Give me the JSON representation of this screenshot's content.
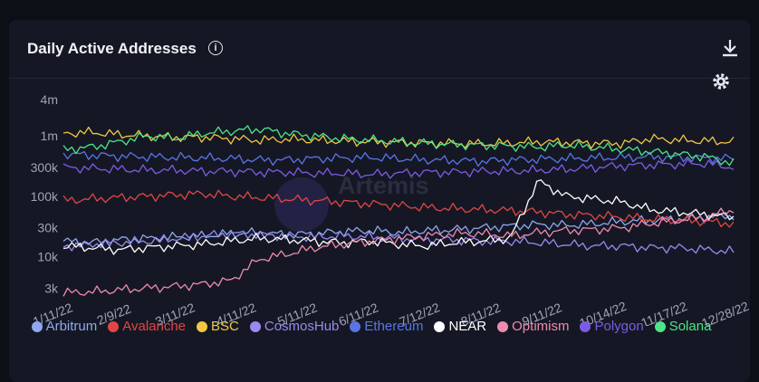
{
  "card": {
    "title": "Daily Active Addresses",
    "watermark": "Artemis"
  },
  "icons": {
    "info": "info-icon",
    "download": "download-icon",
    "settings": "gear-icon"
  },
  "chart_data": {
    "type": "line",
    "yscale": "log",
    "ylim": [
      2000,
      4000000
    ],
    "yticks": [
      {
        "value": 3000,
        "label": "3k"
      },
      {
        "value": 10000,
        "label": "10k"
      },
      {
        "value": 30000,
        "label": "30k"
      },
      {
        "value": 100000,
        "label": "100k"
      },
      {
        "value": 300000,
        "label": "300k"
      },
      {
        "value": 1000000,
        "label": "1m"
      },
      {
        "value": 4000000,
        "label": "4m"
      }
    ],
    "xticks": [
      "1/11/22",
      "2/9/22",
      "3/11/22",
      "4/11/22",
      "5/11/22",
      "6/11/22",
      "7/12/22",
      "8/11/22",
      "9/11/22",
      "10/14/22",
      "11/17/22",
      "12/28/22"
    ],
    "legend_position": "bottom",
    "grid": false,
    "series": [
      {
        "name": "Arbitrum",
        "color": "#8fa8f0",
        "values": [
          18000,
          17000,
          19000,
          20000,
          21000,
          22000,
          24000,
          25000,
          23000,
          24000,
          26000,
          27000,
          25000,
          27000,
          28000,
          30000,
          32000,
          34000,
          33000,
          35000,
          38000,
          40000,
          42000,
          45000,
          48000
        ]
      },
      {
        "name": "Avalanche",
        "color": "#e04646",
        "values": [
          85000,
          90000,
          95000,
          100000,
          105000,
          110000,
          100000,
          95000,
          90000,
          85000,
          80000,
          75000,
          70000,
          65000,
          62000,
          60000,
          58000,
          55000,
          50000,
          48000,
          45000,
          42000,
          40000,
          38000,
          35000
        ]
      },
      {
        "name": "BSC",
        "color": "#f2c744",
        "values": [
          1100000,
          1150000,
          1050000,
          1000000,
          950000,
          950000,
          900000,
          850000,
          880000,
          850000,
          820000,
          800000,
          780000,
          760000,
          750000,
          740000,
          760000,
          800000,
          780000,
          760000,
          750000,
          900000,
          850000,
          820000,
          800000
        ]
      },
      {
        "name": "CosmosHub",
        "color": "#9a8af0",
        "values": [
          15000,
          16000,
          17000,
          18000,
          20000,
          22000,
          24000,
          23000,
          22000,
          21000,
          22000,
          21000,
          20000,
          19000,
          19000,
          18000,
          18000,
          17000,
          16000,
          15000,
          15000,
          14000,
          14000,
          13000,
          12000
        ]
      },
      {
        "name": "Ethereum",
        "color": "#5a74e8",
        "values": [
          500000,
          480000,
          460000,
          450000,
          440000,
          430000,
          420000,
          400000,
          400000,
          420000,
          430000,
          440000,
          420000,
          400000,
          390000,
          380000,
          400000,
          410000,
          420000,
          430000,
          440000,
          450000,
          440000,
          430000,
          420000
        ]
      },
      {
        "name": "NEAR",
        "color": "#ffffff",
        "values": [
          15000,
          14000,
          13000,
          14000,
          15000,
          16000,
          18000,
          20000,
          19000,
          18000,
          17000,
          18000,
          16000,
          15000,
          17000,
          18000,
          20000,
          180000,
          100000,
          90000,
          80000,
          60000,
          55000,
          50000,
          45000
        ]
      },
      {
        "name": "Optimism",
        "color": "#f08ab0",
        "values": [
          2500,
          2600,
          2800,
          3000,
          3200,
          3500,
          4000,
          9000,
          11000,
          14000,
          16000,
          18000,
          20000,
          22000,
          24000,
          24000,
          22000,
          25000,
          27000,
          28000,
          30000,
          35000,
          40000,
          45000,
          60000
        ]
      },
      {
        "name": "Polygon",
        "color": "#7b5ce6",
        "values": [
          300000,
          290000,
          280000,
          270000,
          270000,
          260000,
          260000,
          250000,
          250000,
          240000,
          240000,
          230000,
          240000,
          250000,
          250000,
          260000,
          260000,
          270000,
          280000,
          300000,
          320000,
          330000,
          340000,
          350000,
          300000
        ]
      },
      {
        "name": "Solana",
        "color": "#4ee58a",
        "values": [
          600000,
          650000,
          800000,
          1000000,
          900000,
          1100000,
          1200000,
          1300000,
          1100000,
          1000000,
          900000,
          850000,
          800000,
          750000,
          720000,
          700000,
          680000,
          650000,
          700000,
          650000,
          600000,
          550000,
          500000,
          450000,
          350000
        ]
      }
    ]
  }
}
